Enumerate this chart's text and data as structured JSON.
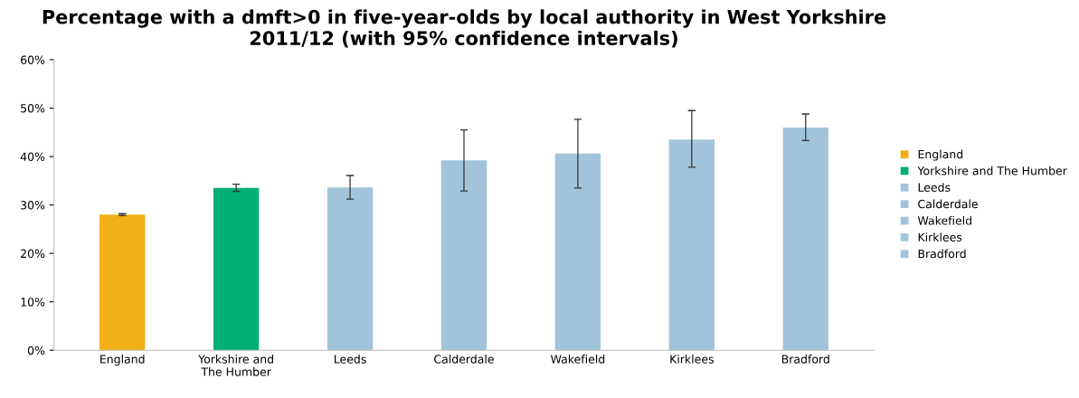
{
  "chart_data": {
    "type": "bar",
    "title": "Percentage with a dmft>0 in five-year-olds by local authority in West Yorkshire 2011/12 (with 95% confidence intervals)",
    "categories": [
      "England",
      "Yorkshire and The Humber",
      "Leeds",
      "Calderdale",
      "Wakefield",
      "Kirklees",
      "Bradford"
    ],
    "series": [
      {
        "name": "England",
        "color": "#f0b016",
        "values": [
          28.0,
          null,
          null,
          null,
          null,
          null,
          null
        ],
        "errors": [
          [
            27.8,
            28.2
          ],
          null,
          null,
          null,
          null,
          null,
          null
        ]
      },
      {
        "name": "Yorkshire and The Humber",
        "color": "#00b073",
        "values": [
          null,
          33.5,
          null,
          null,
          null,
          null,
          null
        ],
        "errors": [
          null,
          [
            32.8,
            34.3
          ],
          null,
          null,
          null,
          null,
          null
        ]
      },
      {
        "name": "Leeds",
        "color": "#a2c4da",
        "values": [
          null,
          null,
          33.6,
          null,
          null,
          null,
          null
        ],
        "errors": [
          null,
          null,
          [
            31.2,
            36.1
          ],
          null,
          null,
          null,
          null
        ]
      },
      {
        "name": "Calderdale",
        "color": "#a2c4da",
        "values": [
          null,
          null,
          null,
          39.2,
          null,
          null,
          null
        ],
        "errors": [
          null,
          null,
          null,
          [
            32.9,
            45.5
          ],
          null,
          null,
          null
        ]
      },
      {
        "name": "Wakefield",
        "color": "#a2c4da",
        "values": [
          null,
          null,
          null,
          null,
          40.6,
          null,
          null
        ],
        "errors": [
          null,
          null,
          null,
          null,
          [
            33.5,
            47.7
          ],
          null,
          null
        ]
      },
      {
        "name": "Kirklees",
        "color": "#a2c4da",
        "values": [
          null,
          null,
          null,
          null,
          null,
          43.5,
          null
        ],
        "errors": [
          null,
          null,
          null,
          null,
          null,
          [
            37.8,
            49.5
          ],
          null
        ]
      },
      {
        "name": "Bradford",
        "color": "#a2c4da",
        "values": [
          null,
          null,
          null,
          null,
          null,
          null,
          46.0
        ],
        "errors": [
          null,
          null,
          null,
          null,
          null,
          null,
          [
            43.3,
            48.8
          ]
        ]
      }
    ],
    "ylim": [
      0,
      60
    ],
    "yticks": [
      {
        "value": 0,
        "label": "0%"
      },
      {
        "value": 10,
        "label": "10%"
      },
      {
        "value": 20,
        "label": "20%"
      },
      {
        "value": 30,
        "label": "30%"
      },
      {
        "value": 40,
        "label": "40%"
      },
      {
        "value": 50,
        "label": "50%"
      },
      {
        "value": 60,
        "label": "60%"
      }
    ],
    "grid": false,
    "legend": "right"
  }
}
